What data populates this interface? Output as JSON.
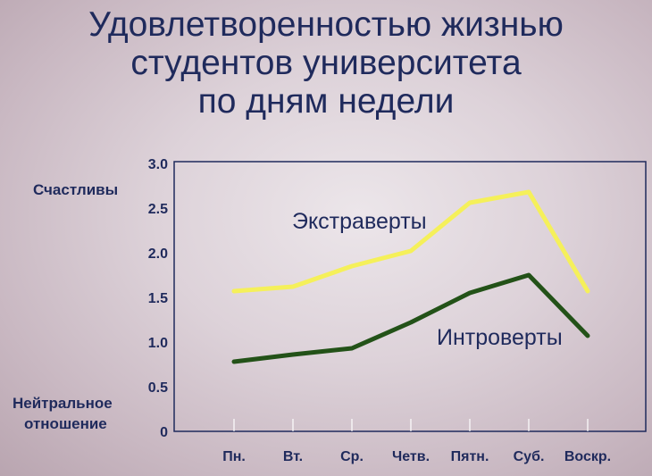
{
  "title_lines": [
    "Удовлетворенностью жизнью",
    "студентов университета",
    "по дням недели"
  ],
  "labels": {
    "happy": "Счастливы",
    "neutral_1": "Нейтральное",
    "neutral_2": "отношение"
  },
  "colors": {
    "title": "#1f2a5c",
    "extraverts": "#f5f05a",
    "introverts": "#235218",
    "axis": "#1f2a5c"
  },
  "chart_data": {
    "type": "line",
    "title": "Удовлетворенностью жизнью студентов университета по дням недели",
    "categories": [
      "Пн.",
      "Вт.",
      "Ср.",
      "Четв.",
      "Пятн.",
      "Суб.",
      "Воскр."
    ],
    "y_tick_labels": [
      "0",
      "0.5",
      "1.0",
      "1.5",
      "2.0",
      "2.5",
      "3.0"
    ],
    "ylim": [
      0,
      3
    ],
    "grid": false,
    "series": [
      {
        "name": "Экстраверты",
        "values": [
          1.57,
          1.62,
          1.85,
          2.02,
          2.56,
          2.68,
          1.57
        ]
      },
      {
        "name": "Интроверты",
        "values": [
          0.78,
          0.86,
          0.93,
          1.22,
          1.55,
          1.75,
          1.07
        ]
      }
    ]
  }
}
